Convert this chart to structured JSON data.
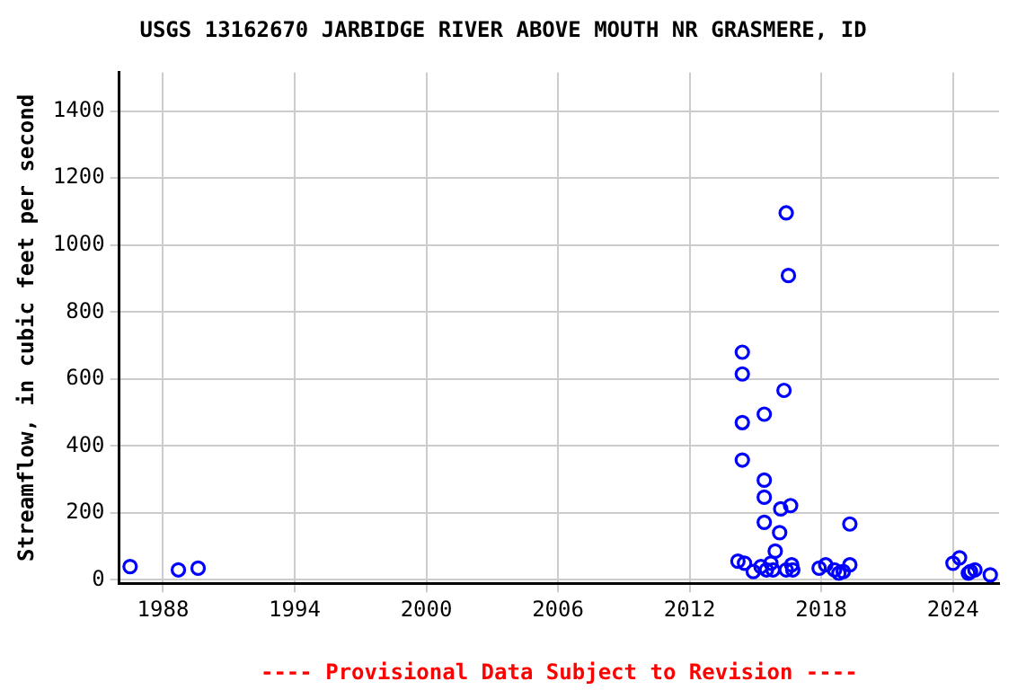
{
  "chart_data": {
    "type": "scatter",
    "title": "USGS 13162670 JARBIDGE RIVER ABOVE MOUTH NR GRASMERE, ID",
    "ylabel": "Streamflow, in cubic feet per second",
    "annotations": [
      "---- Provisional Data Subject to Revision ----"
    ],
    "series": [
      {
        "color": "#0000ff",
        "x": [
          1986.5,
          1988.7,
          1989.6,
          2014.2,
          2014.5,
          2014.4,
          2014.4,
          2014.4,
          2014.4,
          2014.9,
          2015.4,
          2015.4,
          2015.4,
          2015.4,
          2015.25,
          2015.5,
          2015.7,
          2015.8,
          2015.9,
          2016.1,
          2016.15,
          2016.3,
          2016.4,
          2016.5,
          2016.6,
          2016.4,
          2016.65,
          2016.7,
          2017.9,
          2018.2,
          2018.6,
          2018.8,
          2019.0,
          2019.3,
          2019.3,
          2024.0,
          2024.3,
          2024.7,
          2024.8,
          2025.0,
          2025.7
        ],
        "values": [
          40,
          30,
          35,
          56,
          50,
          680,
          615,
          470,
          358,
          25,
          495,
          298,
          247,
          172,
          40,
          30,
          50,
          30,
          86,
          141,
          212,
          566,
          1096,
          909,
          222,
          30,
          45,
          30,
          35,
          45,
          30,
          20,
          25,
          45,
          167,
          50,
          66,
          20,
          25,
          30,
          15
        ]
      }
    ],
    "xlim": [
      1986,
      2026.1
    ],
    "xticks": [
      1988,
      1994,
      2000,
      2006,
      2012,
      2018,
      2024
    ],
    "ylim": [
      -10,
      1515
    ],
    "yticks": [
      0,
      200,
      400,
      600,
      800,
      1000,
      1200,
      1400
    ],
    "grid": true,
    "legend": false,
    "marker": "circle"
  }
}
